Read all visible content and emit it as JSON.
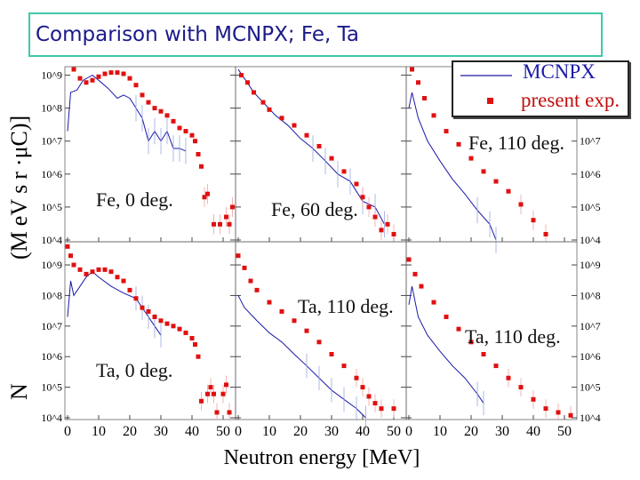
{
  "slide": {
    "title": "Comparison with MCNPX; Fe, Ta"
  },
  "chart_data": {
    "type": "scatter",
    "xlabel": "Neutron energy [MeV]",
    "ylabel_fragments": [
      "(M",
      "eV",
      "s",
      "r",
      "·μC)]",
      "N"
    ],
    "y_scale": "log",
    "x_ticks": [
      "0",
      "10",
      "20",
      "30",
      "40",
      "50"
    ],
    "legend": {
      "placement": "top-right",
      "entries": [
        {
          "name": "MCNPX",
          "style": "line",
          "color": "#1a1aa8"
        },
        {
          "name": "present exp.",
          "style": "square-marker",
          "color": "#e01010"
        }
      ]
    },
    "panels": [
      {
        "label": "Fe, 0 deg.",
        "row": 0,
        "col": 0,
        "ylim": [
          10000.0,
          1600000000.0
        ],
        "exp": [
          [
            2,
            1500000000.0
          ],
          [
            4,
            800000000.0
          ],
          [
            6,
            600000000.0
          ],
          [
            8,
            700000000.0
          ],
          [
            10,
            900000000.0
          ],
          [
            12,
            1100000000.0
          ],
          [
            14,
            1200000000.0
          ],
          [
            16,
            1200000000.0
          ],
          [
            18,
            1100000000.0
          ],
          [
            20,
            800000000.0
          ],
          [
            22,
            500000000.0
          ],
          [
            24,
            250000000.0
          ],
          [
            26,
            150000000.0
          ],
          [
            28,
            100000000.0
          ],
          [
            30,
            80000000.0
          ],
          [
            32,
            60000000.0
          ],
          [
            34,
            40000000.0
          ],
          [
            36,
            25000000.0
          ],
          [
            38,
            20000000.0
          ],
          [
            40,
            15000000.0
          ],
          [
            41,
            10000000.0
          ],
          [
            42,
            4000000.0
          ],
          [
            43,
            1700000.0
          ],
          [
            44,
            200000.0
          ],
          [
            45,
            250000.0
          ],
          [
            47,
            30000.0
          ],
          [
            49,
            30000.0
          ],
          [
            51,
            50000.0
          ],
          [
            52,
            30000.0
          ],
          [
            53,
            100000.0
          ]
        ],
        "mcnpx": [
          [
            0,
            20000000.0
          ],
          [
            1,
            300000000.0
          ],
          [
            3,
            350000000.0
          ],
          [
            5,
            700000000.0
          ],
          [
            8,
            1000000000.0
          ],
          [
            10,
            700000000.0
          ],
          [
            13,
            400000000.0
          ],
          [
            16,
            200000000.0
          ],
          [
            18,
            250000000.0
          ],
          [
            20,
            200000000.0
          ],
          [
            22,
            100000000.0
          ],
          [
            24,
            50000000.0
          ],
          [
            26,
            10000000.0
          ],
          [
            28,
            20000000.0
          ],
          [
            30,
            10000000.0
          ],
          [
            32,
            20000000.0
          ],
          [
            34,
            6000000.0
          ],
          [
            36,
            6000000.0
          ],
          [
            38,
            5000000.0
          ]
        ]
      },
      {
        "label": "Fe, 60 deg.",
        "row": 0,
        "col": 1,
        "ylim": [
          10000.0,
          1600000000.0
        ],
        "exp": [
          [
            1,
            1000000000.0
          ],
          [
            3,
            600000000.0
          ],
          [
            5,
            300000000.0
          ],
          [
            8,
            150000000.0
          ],
          [
            10,
            90000000.0
          ],
          [
            14,
            50000000.0
          ],
          [
            18,
            30000000.0
          ],
          [
            22,
            15000000.0
          ],
          [
            26,
            7000000.0
          ],
          [
            30,
            3000000.0
          ],
          [
            34,
            1200000.0
          ],
          [
            38,
            500000.0
          ],
          [
            40,
            200000.0
          ],
          [
            42,
            100000.0
          ],
          [
            44,
            50000.0
          ],
          [
            46,
            20000.0
          ],
          [
            48,
            30000.0
          ],
          [
            50,
            15000.0
          ]
        ],
        "mcnpx": [
          [
            0,
            1500000000.0
          ],
          [
            2,
            800000000.0
          ],
          [
            5,
            300000000.0
          ],
          [
            8,
            150000000.0
          ],
          [
            12,
            60000000.0
          ],
          [
            16,
            30000000.0
          ],
          [
            20,
            12000000.0
          ],
          [
            24,
            6000000.0
          ],
          [
            28,
            2500000.0
          ],
          [
            32,
            1000000.0
          ],
          [
            36,
            600000.0
          ],
          [
            40,
            150000.0
          ],
          [
            44,
            100000.0
          ],
          [
            47,
            30000.0
          ]
        ]
      },
      {
        "label": "Fe, 110 deg.",
        "row": 0,
        "col": 2,
        "ylim": [
          10000.0,
          1600000000.0
        ],
        "y_ticks": [
          "10^7",
          "10^6",
          "10^5",
          "10^4"
        ],
        "exp": [
          [
            1,
            1500000000.0
          ],
          [
            3,
            600000000.0
          ],
          [
            5,
            200000000.0
          ],
          [
            8,
            60000000.0
          ],
          [
            12,
            20000000.0
          ],
          [
            16,
            8000000.0
          ],
          [
            20,
            3000000.0
          ],
          [
            24,
            1200000.0
          ],
          [
            28,
            600000.0
          ],
          [
            32,
            300000.0
          ],
          [
            36,
            120000.0
          ],
          [
            40,
            40000.0
          ],
          [
            44,
            15000.0
          ]
        ],
        "mcnpx": [
          [
            0,
            100000000.0
          ],
          [
            1,
            300000000.0
          ],
          [
            3,
            50000000.0
          ],
          [
            6,
            10000000.0
          ],
          [
            10,
            2500000.0
          ],
          [
            14,
            700000.0
          ],
          [
            18,
            250000.0
          ],
          [
            22,
            80000.0
          ],
          [
            26,
            30000.0
          ],
          [
            28,
            10000.0
          ]
        ]
      },
      {
        "label": "Ta, 0 deg.",
        "row": 1,
        "col": 0,
        "ylim": [
          10000.0,
          5000000000.0
        ],
        "exp": [
          [
            0,
            4000000000.0
          ],
          [
            1,
            2000000000.0
          ],
          [
            2,
            1000000000.0
          ],
          [
            4,
            700000000.0
          ],
          [
            6,
            500000000.0
          ],
          [
            8,
            600000000.0
          ],
          [
            10,
            700000000.0
          ],
          [
            12,
            700000000.0
          ],
          [
            14,
            600000000.0
          ],
          [
            16,
            400000000.0
          ],
          [
            18,
            300000000.0
          ],
          [
            20,
            150000000.0
          ],
          [
            22,
            80000000.0
          ],
          [
            24,
            40000000.0
          ],
          [
            26,
            30000000.0
          ],
          [
            28,
            20000000.0
          ],
          [
            30,
            15000000.0
          ],
          [
            32,
            12000000.0
          ],
          [
            34,
            10000000.0
          ],
          [
            36,
            8000000.0
          ],
          [
            38,
            6000000.0
          ],
          [
            40,
            4000000.0
          ],
          [
            41,
            2500000.0
          ],
          [
            42,
            1000000.0
          ],
          [
            43,
            35000.0
          ],
          [
            45,
            60000.0
          ],
          [
            46,
            100000.0
          ],
          [
            47,
            60000.0
          ],
          [
            48,
            15000.0
          ],
          [
            50,
            60000.0
          ],
          [
            51,
            120000.0
          ],
          [
            52,
            15000.0
          ]
        ],
        "mcnpx": [
          [
            0,
            20000000.0
          ],
          [
            1,
            300000000.0
          ],
          [
            2,
            100000000.0
          ],
          [
            4,
            200000000.0
          ],
          [
            6,
            400000000.0
          ],
          [
            8,
            600000000.0
          ],
          [
            10,
            400000000.0
          ],
          [
            14,
            200000000.0
          ],
          [
            18,
            120000000.0
          ],
          [
            22,
            80000000.0
          ],
          [
            24,
            40000000.0
          ],
          [
            26,
            20000000.0
          ],
          [
            28,
            10000000.0
          ],
          [
            30,
            5000000.0
          ]
        ]
      },
      {
        "label": "Ta, 110 deg.",
        "row": 1,
        "col": 1,
        "ylim": [
          10000.0,
          5000000000.0
        ],
        "exp": [
          [
            0,
            2000000000.0
          ],
          [
            2,
            800000000.0
          ],
          [
            4,
            300000000.0
          ],
          [
            6,
            150000000.0
          ],
          [
            10,
            60000000.0
          ],
          [
            14,
            30000000.0
          ],
          [
            18,
            15000000.0
          ],
          [
            22,
            7000000.0
          ],
          [
            26,
            3000000.0
          ],
          [
            30,
            1200000.0
          ],
          [
            34,
            500000.0
          ],
          [
            38,
            200000.0
          ],
          [
            40,
            100000.0
          ],
          [
            42,
            50000.0
          ],
          [
            44,
            30000.0
          ],
          [
            46,
            20000.0
          ],
          [
            50,
            20000.0
          ]
        ],
        "mcnpx": [
          [
            0,
            100000000.0
          ],
          [
            2,
            40000000.0
          ],
          [
            6,
            15000000.0
          ],
          [
            10,
            6000000.0
          ],
          [
            14,
            3000000.0
          ],
          [
            18,
            1200000.0
          ],
          [
            22,
            500000.0
          ],
          [
            26,
            200000.0
          ],
          [
            30,
            80000.0
          ],
          [
            34,
            40000.0
          ],
          [
            38,
            20000.0
          ],
          [
            41,
            10000.0
          ]
        ]
      },
      {
        "label": "Ta, 110 deg.",
        "row": 1,
        "col": 2,
        "ylim": [
          10000.0,
          5000000000.0
        ],
        "y_ticks": [
          "10^9",
          "10^8",
          "10^7",
          "10^6",
          "10^5",
          "10^4"
        ],
        "exp": [
          [
            0,
            1500000000.0
          ],
          [
            2,
            500000000.0
          ],
          [
            4,
            200000000.0
          ],
          [
            8,
            60000000.0
          ],
          [
            12,
            20000000.0
          ],
          [
            16,
            8000000.0
          ],
          [
            20,
            3000000.0
          ],
          [
            24,
            1200000.0
          ],
          [
            28,
            500000.0
          ],
          [
            32,
            200000.0
          ],
          [
            36,
            100000.0
          ],
          [
            40,
            40000.0
          ],
          [
            44,
            20000.0
          ],
          [
            48,
            15000.0
          ],
          [
            52,
            12000.0
          ]
        ],
        "mcnpx": [
          [
            0,
            50000000.0
          ],
          [
            1,
            200000000.0
          ],
          [
            3,
            20000000.0
          ],
          [
            6,
            5000000.0
          ],
          [
            10,
            1500000.0
          ],
          [
            14,
            500000.0
          ],
          [
            18,
            200000.0
          ],
          [
            22,
            60000.0
          ],
          [
            24,
            30000.0
          ]
        ]
      }
    ],
    "left_y_ticks": [
      "10^9",
      "10^8",
      "10^7",
      "10^6",
      "10^5",
      "10^4"
    ]
  }
}
